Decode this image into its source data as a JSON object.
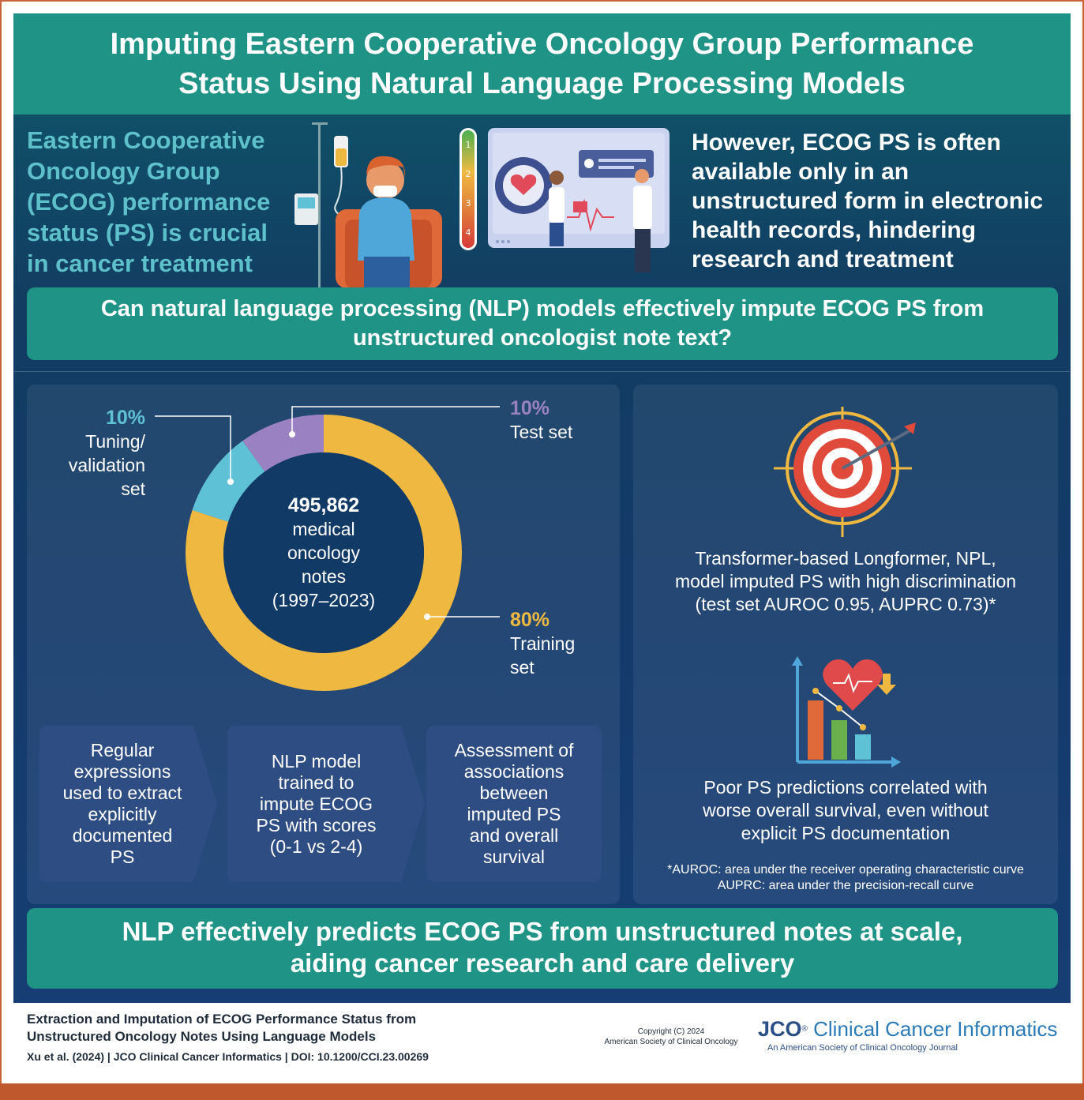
{
  "title": {
    "line1": "Imputing Eastern Cooperative Oncology Group Performance",
    "line2": "Status Using Natural Language Processing Models"
  },
  "intro_left": [
    "Eastern Cooperative",
    "Oncology Group",
    "(ECOG) performance",
    "status (PS) is crucial",
    "in cancer treatment"
  ],
  "intro_right": [
    "However, ECOG PS is often",
    "available only in an",
    "unstructured form in electronic",
    "health records, hindering",
    "research and treatment"
  ],
  "gauge_levels": [
    "1",
    "2",
    "3",
    "4"
  ],
  "question": {
    "line1": "Can natural language processing (NLP) models effectively impute ECOG PS from",
    "line2": "unstructured oncologist note text?"
  },
  "chart_data": {
    "type": "pie",
    "categories": [
      "Training set",
      "Tuning/ validation set",
      "Test set"
    ],
    "values": [
      80,
      10,
      10
    ],
    "colors": [
      "#efb941",
      "#5ec1d6",
      "#9a82c2"
    ],
    "center": {
      "count": "495,862",
      "lines": [
        "medical",
        "oncology",
        "notes",
        "(1997–2023)"
      ]
    },
    "labels": {
      "tuning": {
        "pct": "10%",
        "lines": [
          "Tuning/",
          "validation",
          "set"
        ]
      },
      "test": {
        "pct": "10%",
        "lines": [
          "Test set"
        ]
      },
      "training": {
        "pct": "80%",
        "lines": [
          "Training",
          "set"
        ]
      }
    }
  },
  "steps": [
    {
      "lines": [
        "Regular",
        "expressions",
        "used to extract",
        "explicitly",
        "documented",
        "PS"
      ]
    },
    {
      "lines": [
        "NLP model",
        "trained to",
        "impute ECOG",
        "PS with scores",
        "(0-1 vs 2-4)"
      ]
    },
    {
      "lines": [
        "Assessment of",
        "associations",
        "between",
        "imputed PS",
        "and overall",
        "survival"
      ]
    }
  ],
  "finding1": [
    "Transformer-based Longformer, NPL,",
    "model imputed PS with high discrimination",
    "(test set AUROC 0.95, AUPRC 0.73)*"
  ],
  "finding2": [
    "Poor PS predictions correlated with",
    "worse overall survival, even without",
    "explicit PS documentation"
  ],
  "footnote": [
    "*AUROC: area under the receiver operating characteristic curve",
    "AUPRC: area under the precision-recall curve"
  ],
  "conclusion": {
    "line1": "NLP effectively predicts ECOG PS from unstructured notes at scale,",
    "line2": "aiding cancer research and care delivery"
  },
  "citation": {
    "title1": "Extraction and Imputation of ECOG Performance Status from",
    "title2": "Unstructured Oncology Notes Using Language Models",
    "line": "Xu et al. (2024)  |  JCO Clinical Cancer Informatics  |  DOI: 10.1200/CCI.23.00269"
  },
  "copyright": [
    "Copyright (C) 2024",
    "American Society of Clinical Oncology"
  ],
  "journal": {
    "mark": "JCO",
    "reg": "®",
    "name": " Clinical Cancer Informatics",
    "sub": "An American Society of Clinical Oncology Journal"
  }
}
